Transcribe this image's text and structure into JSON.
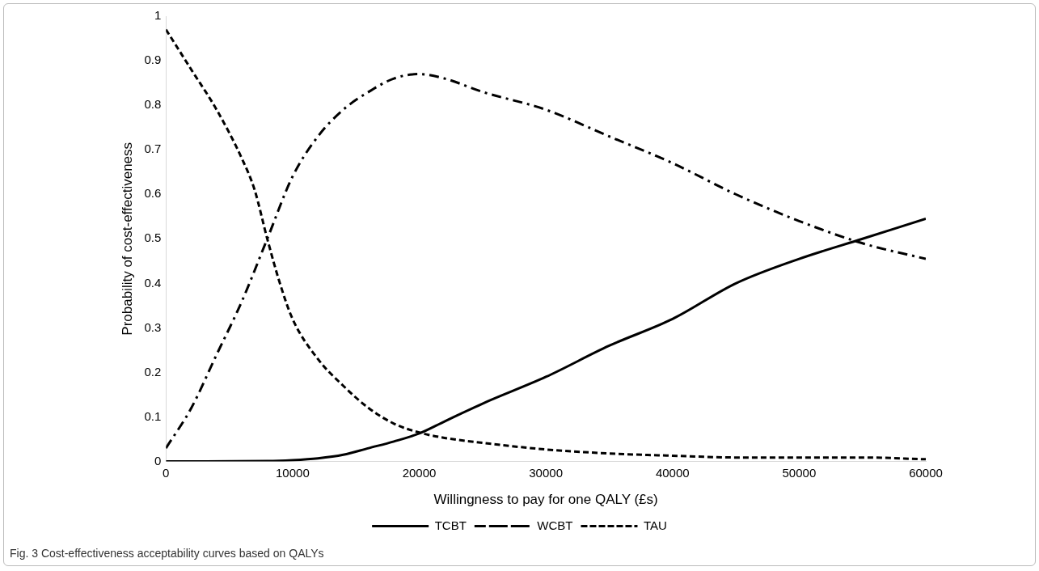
{
  "chart_data": {
    "type": "line",
    "xlabel": "Willingness to pay for one QALY (£s)",
    "ylabel": "Probability of cost-effectiveness",
    "annotations": [
      "Fig. 3  Cost-effectiveness acceptability curves based on QALYs"
    ],
    "xlim": [
      0,
      60000
    ],
    "xticks": [
      0,
      10000,
      20000,
      30000,
      40000,
      50000,
      60000
    ],
    "ylim": [
      0,
      1
    ],
    "yticks": [
      0,
      0.1,
      0.2,
      0.3,
      0.4,
      0.5,
      0.6,
      0.7,
      0.8,
      0.9,
      1
    ],
    "grid": false,
    "legend": "bottom",
    "marker": "none",
    "series": [
      {
        "name": "TCBT",
        "color": "#000000",
        "line_style": "solid",
        "x": [
          0,
          8000,
          10000,
          12000,
          14000,
          16000,
          18000,
          20000,
          22000,
          25000,
          30000,
          35000,
          40000,
          45000,
          50000,
          55000,
          60000
        ],
        "values": [
          0,
          0.001,
          0.003,
          0.007,
          0.015,
          0.03,
          0.045,
          0.063,
          0.09,
          0.13,
          0.19,
          0.26,
          0.32,
          0.4,
          0.455,
          0.5,
          0.545
        ]
      },
      {
        "name": "WCBT",
        "color": "#000000",
        "line_style": "dashdot",
        "x": [
          0,
          2000,
          4000,
          6000,
          8000,
          10000,
          12000,
          14000,
          16000,
          18000,
          20000,
          22000,
          25000,
          30000,
          35000,
          40000,
          45000,
          50000,
          55000,
          60000
        ],
        "values": [
          0.03,
          0.12,
          0.24,
          0.36,
          0.5,
          0.64,
          0.73,
          0.79,
          0.83,
          0.86,
          0.87,
          0.86,
          0.83,
          0.79,
          0.73,
          0.67,
          0.6,
          0.54,
          0.49,
          0.455
        ]
      },
      {
        "name": "TAU",
        "color": "#000000",
        "line_style": "dashed",
        "x": [
          0,
          2000,
          4000,
          6000,
          7000,
          8000,
          9000,
          10000,
          12000,
          14000,
          16000,
          18000,
          20000,
          22000,
          25000,
          30000,
          35000,
          40000,
          45000,
          50000,
          55000,
          60000
        ],
        "values": [
          0.97,
          0.88,
          0.79,
          0.68,
          0.61,
          0.5,
          0.4,
          0.32,
          0.23,
          0.17,
          0.12,
          0.085,
          0.065,
          0.053,
          0.042,
          0.027,
          0.018,
          0.013,
          0.009,
          0.009,
          0.009,
          0.005
        ]
      }
    ]
  }
}
